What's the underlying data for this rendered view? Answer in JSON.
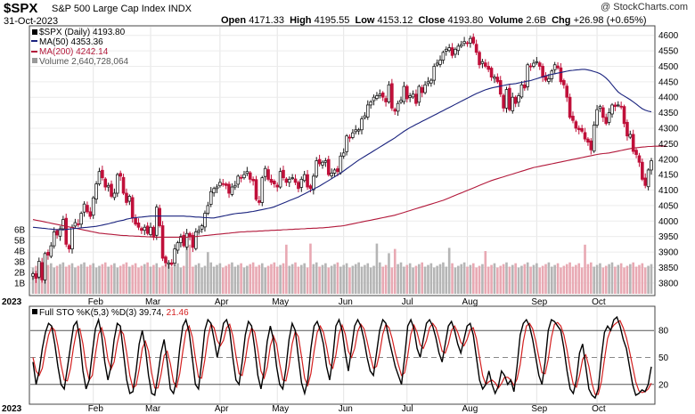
{
  "header": {
    "symbol": "$SPX",
    "name": "S&P 500 Large Cap Index",
    "exchange": "INDX",
    "date": "31-Oct-2023",
    "open_label": "Open",
    "open": "4171.33",
    "high_label": "High",
    "high": "4195.55",
    "low_label": "Low",
    "low": "4153.12",
    "close_label": "Close",
    "close": "4193.80",
    "volume_label": "Volume",
    "volume": "2.6B",
    "chg_label": "Chg",
    "chg": "+26.98 (+0.65%)",
    "credit": "@ StockCharts.com"
  },
  "legend": {
    "price": "$SPX (Daily) 4193.80",
    "ma50": "MA(50) 4353.36",
    "ma200": "MA(200) 4242.14",
    "volume": "Volume 2,640,728,064",
    "sto_prefix": "Full STO %K(5,3) %D(3) 39.74,",
    "sto_d": "21.46"
  },
  "colors": {
    "up": "#1a1a1a",
    "down": "#c0103a",
    "ma50": "#1a237e",
    "ma200": "#b2183a",
    "volume_up": "#b5b5b5",
    "volume_down": "#e8a9b3",
    "sto_k": "#000000",
    "sto_d": "#d42020",
    "frame": "#444444"
  },
  "chart_data": [
    {
      "type": "candlestick",
      "title": "$SPX S&P 500 Large Cap Index INDX",
      "y_ticks": [
        3800,
        3850,
        3900,
        3950,
        4000,
        4050,
        4100,
        4150,
        4200,
        4250,
        4300,
        4350,
        4400,
        4450,
        4500,
        4550,
        4600
      ],
      "ylim": [
        3765,
        4625
      ],
      "x_month_labels": [
        "2023",
        "Feb",
        "Mar",
        "Apr",
        "May",
        "Jun",
        "Jul",
        "Aug",
        "Sep",
        "Oct"
      ],
      "month_start_index": [
        0,
        20,
        39,
        62,
        81,
        103,
        124,
        144,
        167,
        187
      ],
      "close": [
        3830,
        3815,
        3870,
        3810,
        3895,
        3890,
        3920,
        3965,
        3955,
        3975,
        4005,
        3925,
        3910,
        3980,
        3995,
        3990,
        4025,
        4055,
        4030,
        4015,
        4075,
        4120,
        4160,
        4140,
        4110,
        4115,
        4080,
        4090,
        4150,
        4145,
        4090,
        4060,
        4080,
        4010,
        3990,
        3980,
        3970,
        3980,
        3960,
        3980,
        3950,
        4045,
        3985,
        3880,
        3865,
        3865,
        3860,
        3910,
        3930,
        3950,
        3920,
        3960,
        3950,
        3915,
        3965,
        3970,
        3985,
        4025,
        4050,
        4095,
        4105,
        4110,
        4125,
        4120,
        4115,
        4090,
        4110,
        4115,
        4145,
        4140,
        4150,
        4160,
        4135,
        4130,
        4070,
        4060,
        4140,
        4170,
        4135,
        4125,
        4120,
        4110,
        4160,
        4140,
        4125,
        4135,
        4140,
        4125,
        4105,
        4135,
        4150,
        4110,
        4105,
        4145,
        4195,
        4185,
        4190,
        4195,
        4150,
        4155,
        4165,
        4160,
        4210,
        4220,
        4275,
        4270,
        4285,
        4295,
        4295,
        4330,
        4340,
        4375,
        4385,
        4400,
        4405,
        4410,
        4400,
        4385,
        4440,
        4365,
        4355,
        4380,
        4390,
        4435,
        4395,
        4405,
        4410,
        4380,
        4435,
        4415,
        4440,
        4450,
        4455,
        4500,
        4510,
        4520,
        4545,
        4555,
        4560,
        4535,
        4555,
        4565,
        4570,
        4580,
        4575,
        4590,
        4575,
        4545,
        4505,
        4515,
        4500,
        4490,
        4465,
        4465,
        4450,
        4410,
        4365,
        4425,
        4360,
        4400,
        4380,
        4405,
        4440,
        4430,
        4505,
        4500,
        4510,
        4515,
        4500,
        4465,
        4455,
        4460,
        4485,
        4505,
        4495,
        4450,
        4440,
        4400,
        4335,
        4325,
        4300,
        4295,
        4290,
        4265,
        4255,
        4230,
        4310,
        4360,
        4370,
        4335,
        4315,
        4350,
        4375,
        4370,
        4375,
        4370,
        4315,
        4275,
        4280,
        4225,
        4215,
        4190,
        4135,
        4115,
        4165,
        4195
      ],
      "ma50": [
        3980,
        3979,
        3978,
        3977,
        3976,
        3975,
        3974,
        3973,
        3972,
        3972,
        3972,
        3973,
        3974,
        3975,
        3976,
        3977,
        3978,
        3979,
        3980,
        3981,
        3982,
        3983,
        3985,
        3987,
        3989,
        3991,
        3994,
        3996,
        3999,
        4001,
        4003,
        4006,
        4008,
        4010,
        4011,
        4012,
        4013,
        4014,
        4015,
        4016,
        4016,
        4016,
        4016,
        4016,
        4016,
        4016,
        4016,
        4016,
        4016,
        4016,
        4016,
        4015,
        4015,
        4014,
        4013,
        4013,
        4012,
        4011,
        4011,
        4010,
        4010,
        4012,
        4014,
        4016,
        4018,
        4020,
        4022,
        4024,
        4025,
        4026,
        4027,
        4028,
        4030,
        4031,
        4033,
        4035,
        4037,
        4039,
        4041,
        4043,
        4046,
        4050,
        4054,
        4058,
        4062,
        4066,
        4070,
        4074,
        4078,
        4083,
        4088,
        4093,
        4098,
        4103,
        4108,
        4113,
        4119,
        4125,
        4131,
        4137,
        4143,
        4149,
        4155,
        4162,
        4169,
        4176,
        4183,
        4190,
        4197,
        4203,
        4209,
        4215,
        4221,
        4227,
        4233,
        4239,
        4245,
        4251,
        4257,
        4263,
        4269,
        4276,
        4283,
        4290,
        4296,
        4302,
        4307,
        4312,
        4317,
        4322,
        4327,
        4332,
        4337,
        4342,
        4347,
        4352,
        4357,
        4362,
        4367,
        4372,
        4377,
        4382,
        4387,
        4392,
        4397,
        4402,
        4407,
        4412,
        4416,
        4420,
        4424,
        4427,
        4430,
        4432,
        4434,
        4436,
        4438,
        4440,
        4442,
        4443,
        4444,
        4446,
        4448,
        4450,
        4452,
        4454,
        4457,
        4460,
        4463,
        4466,
        4469,
        4472,
        4474,
        4476,
        4478,
        4480,
        4482,
        4484,
        4486,
        4487,
        4488,
        4489,
        4490,
        4490,
        4488,
        4486,
        4483,
        4480,
        4476,
        4470,
        4462,
        4452,
        4440,
        4428,
        4417,
        4410,
        4404,
        4398,
        4392,
        4385,
        4378,
        4370,
        4363,
        4358,
        4355,
        4353
      ],
      "ma200": [
        4005,
        4003,
        4001,
        3999,
        3997,
        3995,
        3993,
        3991,
        3989,
        3987,
        3985,
        3983,
        3981,
        3979,
        3977,
        3975,
        3973,
        3971,
        3969,
        3967,
        3965,
        3963,
        3961,
        3960,
        3959,
        3958,
        3957,
        3956,
        3955,
        3954,
        3953,
        3953,
        3952,
        3952,
        3951,
        3951,
        3950,
        3950,
        3949,
        3949,
        3948,
        3948,
        3948,
        3948,
        3948,
        3948,
        3948,
        3948,
        3948,
        3948,
        3948,
        3948,
        3949,
        3949,
        3950,
        3951,
        3952,
        3953,
        3954,
        3955,
        3956,
        3957,
        3958,
        3959,
        3960,
        3961,
        3962,
        3963,
        3964,
        3965,
        3965,
        3966,
        3966,
        3967,
        3967,
        3968,
        3968,
        3969,
        3969,
        3970,
        3970,
        3971,
        3971,
        3972,
        3972,
        3973,
        3973,
        3974,
        3974,
        3975,
        3975,
        3976,
        3976,
        3977,
        3977,
        3978,
        3978,
        3979,
        3980,
        3981,
        3982,
        3983,
        3984,
        3985,
        3987,
        3989,
        3991,
        3993,
        3995,
        3997,
        3999,
        4001,
        4003,
        4005,
        4007,
        4009,
        4011,
        4013,
        4015,
        4017,
        4019,
        4022,
        4025,
        4028,
        4031,
        4034,
        4037,
        4040,
        4043,
        4046,
        4049,
        4052,
        4055,
        4058,
        4061,
        4064,
        4067,
        4071,
        4075,
        4079,
        4083,
        4087,
        4091,
        4095,
        4099,
        4103,
        4107,
        4111,
        4115,
        4119,
        4123,
        4127,
        4131,
        4134,
        4137,
        4140,
        4143,
        4146,
        4149,
        4152,
        4155,
        4158,
        4161,
        4164,
        4167,
        4170,
        4173,
        4175,
        4177,
        4179,
        4181,
        4183,
        4185,
        4187,
        4189,
        4191,
        4193,
        4195,
        4197,
        4199,
        4201,
        4203,
        4205,
        4207,
        4209,
        4211,
        4213,
        4215,
        4217,
        4218,
        4219,
        4220,
        4222,
        4224,
        4226,
        4228,
        4230,
        4232,
        4234,
        4236,
        4237,
        4238,
        4239,
        4240,
        4241,
        4241,
        4242,
        4242,
        4242,
        4242,
        4242
      ]
    },
    {
      "type": "bar",
      "title": "Volume",
      "y_ticks": [
        "1B",
        "2B",
        "3B",
        "4B",
        "5B",
        "6B"
      ],
      "ylim": [
        0,
        6.5
      ],
      "unit": "B",
      "baseline_b": 2.7,
      "spike_index": [
        51,
        52,
        58,
        84,
        92,
        114,
        118,
        120,
        138,
        150,
        183,
        208
      ],
      "spike_b": [
        5.4,
        4.6,
        3.9,
        4.6,
        4.7,
        4.7,
        3.8,
        4.2,
        4.3,
        4.0,
        4.6,
        3.5
      ]
    },
    {
      "type": "line",
      "title": "Full STO %K(5,3) %D(3)",
      "series": [
        {
          "name": "%K",
          "values": [
            45,
            20,
            35,
            60,
            78,
            88,
            85,
            65,
            40,
            20,
            15,
            38,
            62,
            85,
            90,
            70,
            35,
            15,
            25,
            55,
            82,
            92,
            75,
            45,
            25,
            40,
            70,
            88,
            85,
            55,
            25,
            10,
            12,
            35,
            65,
            80,
            60,
            30,
            10,
            8,
            30,
            55,
            70,
            45,
            15,
            10,
            25,
            60,
            85,
            92,
            78,
            50,
            20,
            15,
            45,
            80,
            92,
            88,
            70,
            50,
            68,
            88,
            92,
            80,
            50,
            25,
            20,
            45,
            75,
            90,
            85,
            60,
            30,
            15,
            35,
            68,
            85,
            70,
            40,
            20,
            15,
            38,
            70,
            88,
            80,
            50,
            22,
            10,
            25,
            60,
            85,
            90,
            80,
            65,
            40,
            25,
            50,
            85,
            92,
            80,
            55,
            35,
            60,
            85,
            92,
            85,
            70,
            50,
            35,
            30,
            55,
            80,
            92,
            88,
            70,
            55,
            40,
            30,
            20,
            50,
            85,
            92,
            82,
            60,
            50,
            70,
            88,
            92,
            85,
            72,
            55,
            45,
            65,
            85,
            90,
            80,
            65,
            55,
            70,
            85,
            88,
            75,
            50,
            25,
            15,
            20,
            35,
            20,
            10,
            18,
            35,
            30,
            20,
            25,
            12,
            40,
            75,
            88,
            92,
            85,
            70,
            50,
            30,
            20,
            45,
            80,
            92,
            90,
            85,
            80,
            60,
            35,
            15,
            10,
            25,
            55,
            65,
            40,
            15,
            8,
            5,
            15,
            50,
            78,
            85,
            80,
            92,
            95,
            85,
            70,
            60,
            40,
            20,
            8,
            10,
            14,
            12,
            20,
            39.74
          ]
        },
        {
          "name": "%D",
          "values": [
            50,
            35,
            30,
            38,
            58,
            75,
            84,
            80,
            63,
            42,
            25,
            24,
            38,
            62,
            80,
            82,
            65,
            40,
            25,
            30,
            54,
            76,
            83,
            71,
            48,
            37,
            45,
            66,
            81,
            76,
            55,
            30,
            16,
            19,
            37,
            60,
            68,
            57,
            33,
            16,
            16,
            31,
            52,
            57,
            43,
            23,
            17,
            32,
            57,
            79,
            85,
            73,
            49,
            28,
            27,
            47,
            72,
            87,
            83,
            69,
            63,
            69,
            83,
            87,
            74,
            52,
            32,
            30,
            47,
            70,
            83,
            78,
            58,
            35,
            27,
            39,
            63,
            74,
            65,
            43,
            25,
            24,
            41,
            65,
            79,
            73,
            51,
            27,
            19,
            32,
            57,
            78,
            85,
            78,
            62,
            43,
            38,
            53,
            76,
            86,
            76,
            57,
            50,
            60,
            79,
            87,
            82,
            68,
            52,
            38,
            40,
            55,
            76,
            87,
            83,
            71,
            55,
            42,
            30,
            33,
            52,
            76,
            86,
            78,
            64,
            60,
            69,
            83,
            88,
            83,
            71,
            57,
            55,
            65,
            80,
            85,
            78,
            67,
            63,
            70,
            81,
            83,
            71,
            50,
            30,
            20,
            23,
            25,
            22,
            16,
            21,
            28,
            28,
            25,
            19,
            26,
            42,
            68,
            85,
            88,
            82,
            68,
            50,
            33,
            32,
            48,
            72,
            87,
            89,
            85,
            75,
            58,
            37,
            20,
            17,
            30,
            48,
            53,
            40,
            21,
            9,
            9,
            23,
            48,
            71,
            81,
            86,
            89,
            91,
            83,
            72,
            57,
            40,
            23,
            13,
            11,
            12,
            15,
            21.46
          ]
        }
      ],
      "y_ticks": [
        20,
        50,
        80
      ],
      "ylim": [
        0,
        105
      ],
      "x_month_labels": [
        "2023",
        "Feb",
        "Mar",
        "Apr",
        "May",
        "Jun",
        "Jul",
        "Aug",
        "Sep",
        "Oct"
      ]
    }
  ]
}
